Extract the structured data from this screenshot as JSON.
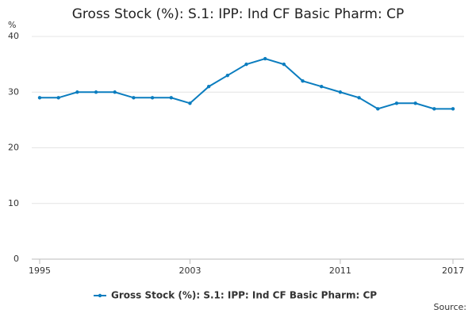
{
  "chart_data": {
    "type": "line",
    "title": "Gross Stock (%): S.1: IPP: Ind CF Basic Pharm: CP",
    "y_label": "%",
    "source": "Source:",
    "x": [
      1995,
      1996,
      1997,
      1998,
      1999,
      2000,
      2001,
      2002,
      2003,
      2004,
      2005,
      2006,
      2007,
      2008,
      2009,
      2010,
      2011,
      2012,
      2013,
      2014,
      2015,
      2016,
      2017
    ],
    "series": [
      {
        "name": "Gross Stock (%): S.1: IPP: Ind CF Basic Pharm: CP",
        "color": "#0b7dbf",
        "values": [
          29,
          29,
          30,
          30,
          30,
          29,
          29,
          29,
          28,
          31,
          33,
          35,
          36,
          35,
          32,
          31,
          30,
          29,
          27,
          28,
          28,
          27,
          27
        ]
      }
    ],
    "xlim": [
      1995,
      2017
    ],
    "xticks": [
      1995,
      2003,
      2011,
      2017
    ],
    "ylim": [
      0,
      40
    ],
    "yticks": [
      0,
      10,
      20,
      30,
      40
    ],
    "grid": true
  }
}
